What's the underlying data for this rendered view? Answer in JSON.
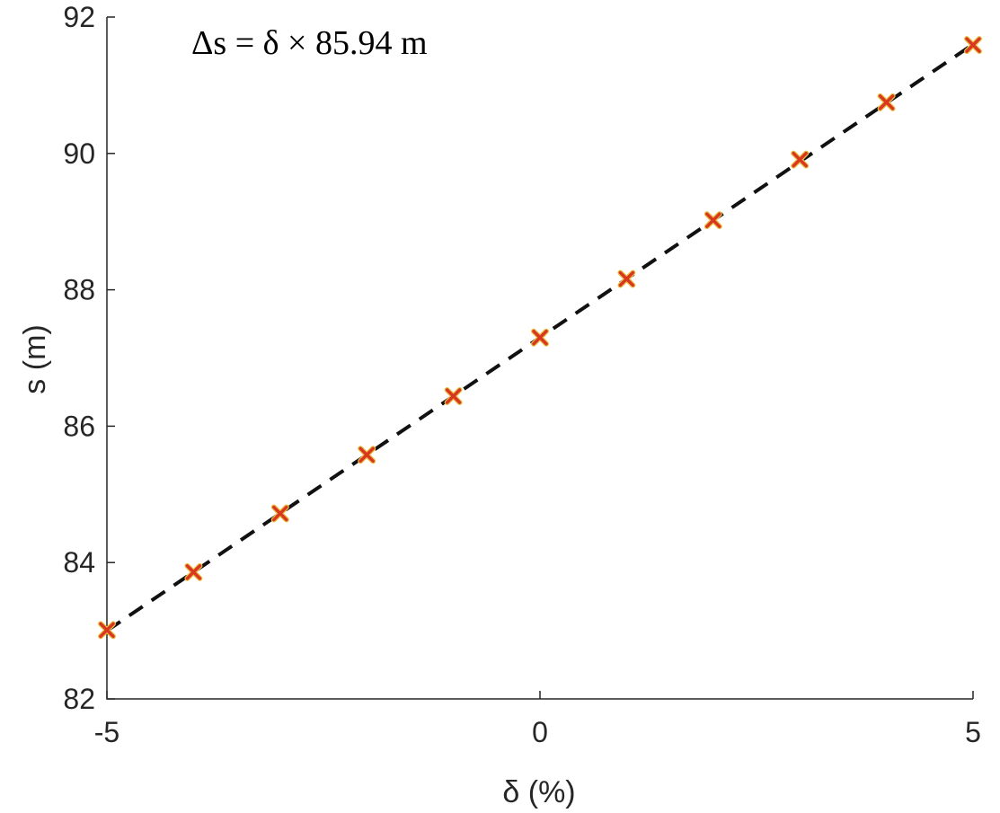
{
  "chart_data": {
    "type": "scatter",
    "annotation": "Δs = δ × 85.94 m",
    "xlabel": "δ (%)",
    "ylabel": "s (m)",
    "xlim": [
      -5,
      5
    ],
    "ylim": [
      82,
      92
    ],
    "xticks": [
      -5,
      0,
      5
    ],
    "yticks": [
      82,
      84,
      86,
      88,
      90,
      92
    ],
    "xtick_labels": [
      "-5",
      "0",
      "5"
    ],
    "ytick_labels": [
      "82",
      "84",
      "86",
      "88",
      "90",
      "92"
    ],
    "grid": false,
    "series": [
      {
        "kind": "markers",
        "marker": "x",
        "x": [
          -5,
          -4,
          -3,
          -2,
          -1,
          0,
          1,
          2,
          3,
          4,
          5
        ],
        "y": [
          83.01,
          83.86,
          84.72,
          85.58,
          86.44,
          87.3,
          88.16,
          89.02,
          89.91,
          90.75,
          91.59
        ]
      },
      {
        "kind": "fit-line",
        "style": "dashed",
        "x": [
          -5,
          5
        ],
        "y": [
          83.0,
          91.6
        ]
      }
    ],
    "colors": {
      "marker": "#d9381e",
      "marker_outline": "#e8c24a",
      "fit_line": "#111111",
      "axis": "#262626"
    }
  }
}
